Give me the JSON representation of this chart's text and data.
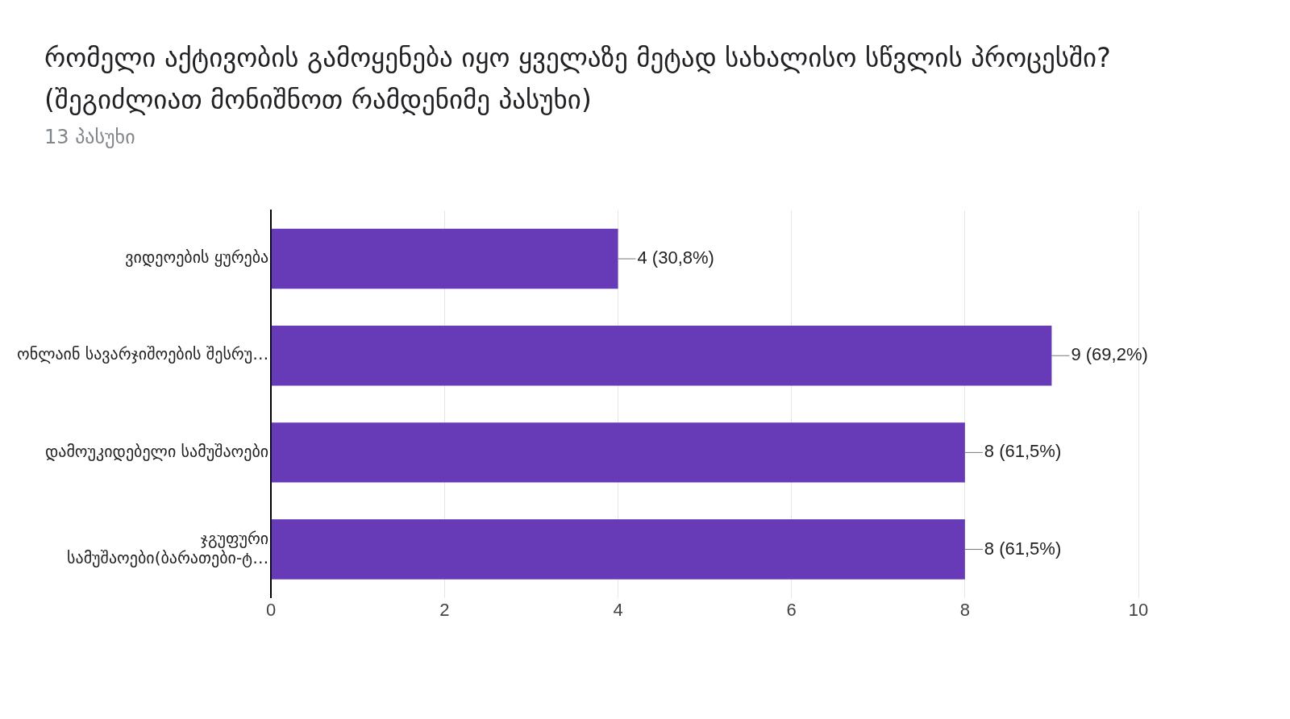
{
  "chart_data": {
    "type": "bar",
    "orientation": "horizontal",
    "title": "რომელი აქტივობის გამოყენება იყო ყველაზე მეტად სახალისო სწვლის პროცესში?(შეგიძლიათ მონიშნოთ რამდენიმე პასუხი)",
    "subtitle": "13 პასუხი",
    "categories": [
      "ვიდეოების ყურება",
      "ონლაინ სავარჯიშოების შესრუ…",
      "დამოუკიდებელი სამუშაოები",
      "ჯგუფური სამუშაოები(ბარათები-ტ…"
    ],
    "values": [
      4,
      9,
      8,
      8
    ],
    "color": "#673ab7",
    "value_labels": [
      "4 (30,8%)",
      "9 (69,2%)",
      "8 (61,5%)",
      "8 (61,5%)"
    ],
    "xlim": [
      0,
      10
    ],
    "xticks": [
      0,
      2,
      4,
      6,
      8,
      10
    ],
    "grid": "x",
    "legend": false
  }
}
